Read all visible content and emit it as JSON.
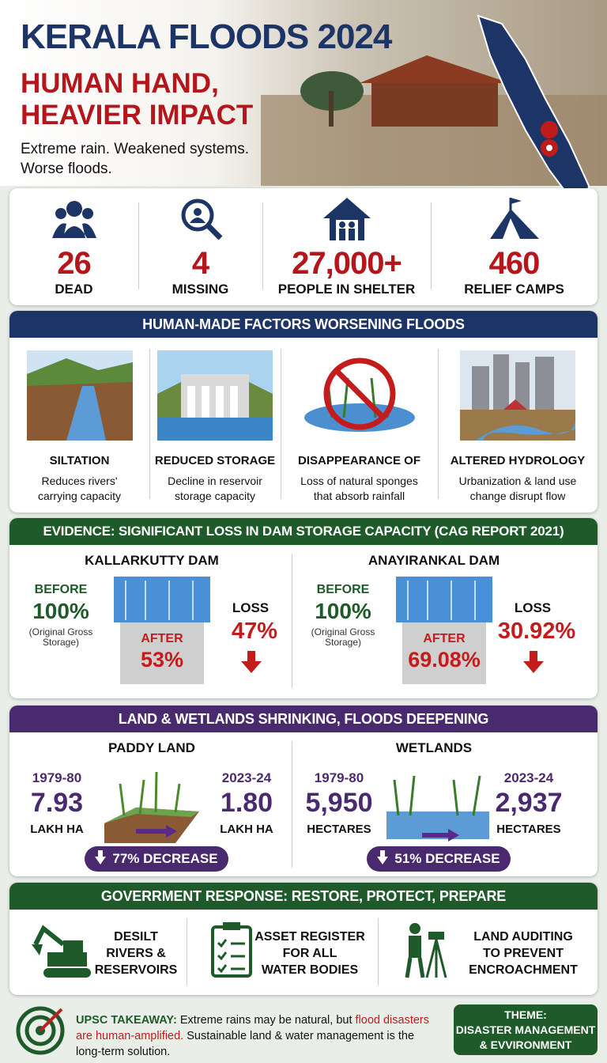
{
  "header": {
    "title": "KERALA FLOODS 2024",
    "subtitle": [
      "HUMAN HAND,",
      "HEAVIER IMPACT"
    ],
    "tagline": [
      "Extreme rain. Weakened systems.",
      "Worse floods."
    ]
  },
  "stats": [
    {
      "value": "26",
      "label": "DEAD"
    },
    {
      "value": "4",
      "label": "MISSING"
    },
    {
      "value": "27,000+",
      "label": "PEOPLE IN SHELTER"
    },
    {
      "value": "460",
      "label": "RELIEF CAMPS"
    }
  ],
  "factors": {
    "title": "HUMAN-MADE FACTORS WORSENING FLOODS",
    "items": [
      {
        "name": "SILTATION",
        "desc": [
          "Reduces rivers'",
          "carrying capacity"
        ]
      },
      {
        "name": "REDUCED STORAGE",
        "desc": [
          "Decline in reservoir",
          "storage capacity"
        ]
      },
      {
        "name": "DISAPPEARANCE OF",
        "desc": [
          "Loss of natural sponges",
          "that absorb rainfall"
        ]
      },
      {
        "name": "ALTERED HYDROLOGY",
        "desc": [
          "Urbanization & land use",
          "change disrupt flow"
        ]
      }
    ]
  },
  "evidence": {
    "title": "EVIDENCE: SIGNIFICANT LOSS IN DAM STORAGE CAPACITY (CAG REPORT 2021)",
    "dams": [
      {
        "name": "KALLARKUTTY DAM",
        "before_label": "BEFORE",
        "before": "100%",
        "note": "(Original Gross Storage)",
        "after_label": "AFTER",
        "after": "53%",
        "loss_label": "LOSS",
        "loss": "47%"
      },
      {
        "name": "ANAYIRANKAL DAM",
        "before_label": "BEFORE",
        "before": "100%",
        "note": "(Original Gross Storage)",
        "after_label": "AFTER",
        "after": "69.08%",
        "loss_label": "LOSS",
        "loss": "30.92%"
      }
    ]
  },
  "land": {
    "title": "LAND & WETLANDS SHRINKING, FLOODS DEEPENING",
    "panels": [
      {
        "name": "PADDY LAND",
        "from_year": "1979-80",
        "from_value": "7.93",
        "from_unit": "LAKH HA",
        "to_year": "2023-24",
        "to_value": "1.80",
        "to_unit": "LAKH HA",
        "decrease": "77% DECREASE"
      },
      {
        "name": "WETLANDS",
        "from_year": "1979-80",
        "from_value": "5,950",
        "from_unit": "HECTARES",
        "to_year": "2023-24",
        "to_value": "2,937",
        "to_unit": "HECTARES",
        "decrease": "51% DECREASE"
      }
    ]
  },
  "response": {
    "title": "GOVERRMENT RESPONSE: RESTORE, PROTECT, PREPARE",
    "items": [
      [
        "DESILT",
        "RIVERS &",
        "RESERVOIRS"
      ],
      [
        "ASSET REGISTER",
        "FOR ALL",
        "WATER BODIES"
      ],
      [
        "LAND AUDITING",
        "TO PREVENT",
        "ENCROACHMENT"
      ]
    ]
  },
  "footer": {
    "label": "UPSC TAKEAWAY:",
    "text1": "Extreme rains may be natural, but",
    "highlight": "flood disasters are human-amplified.",
    "text2": "Sustainable land & water management is the long-term solution.",
    "theme": [
      "THEME:",
      "DISASTER MANAGEMENT",
      "& EVVIRONMENT"
    ]
  }
}
